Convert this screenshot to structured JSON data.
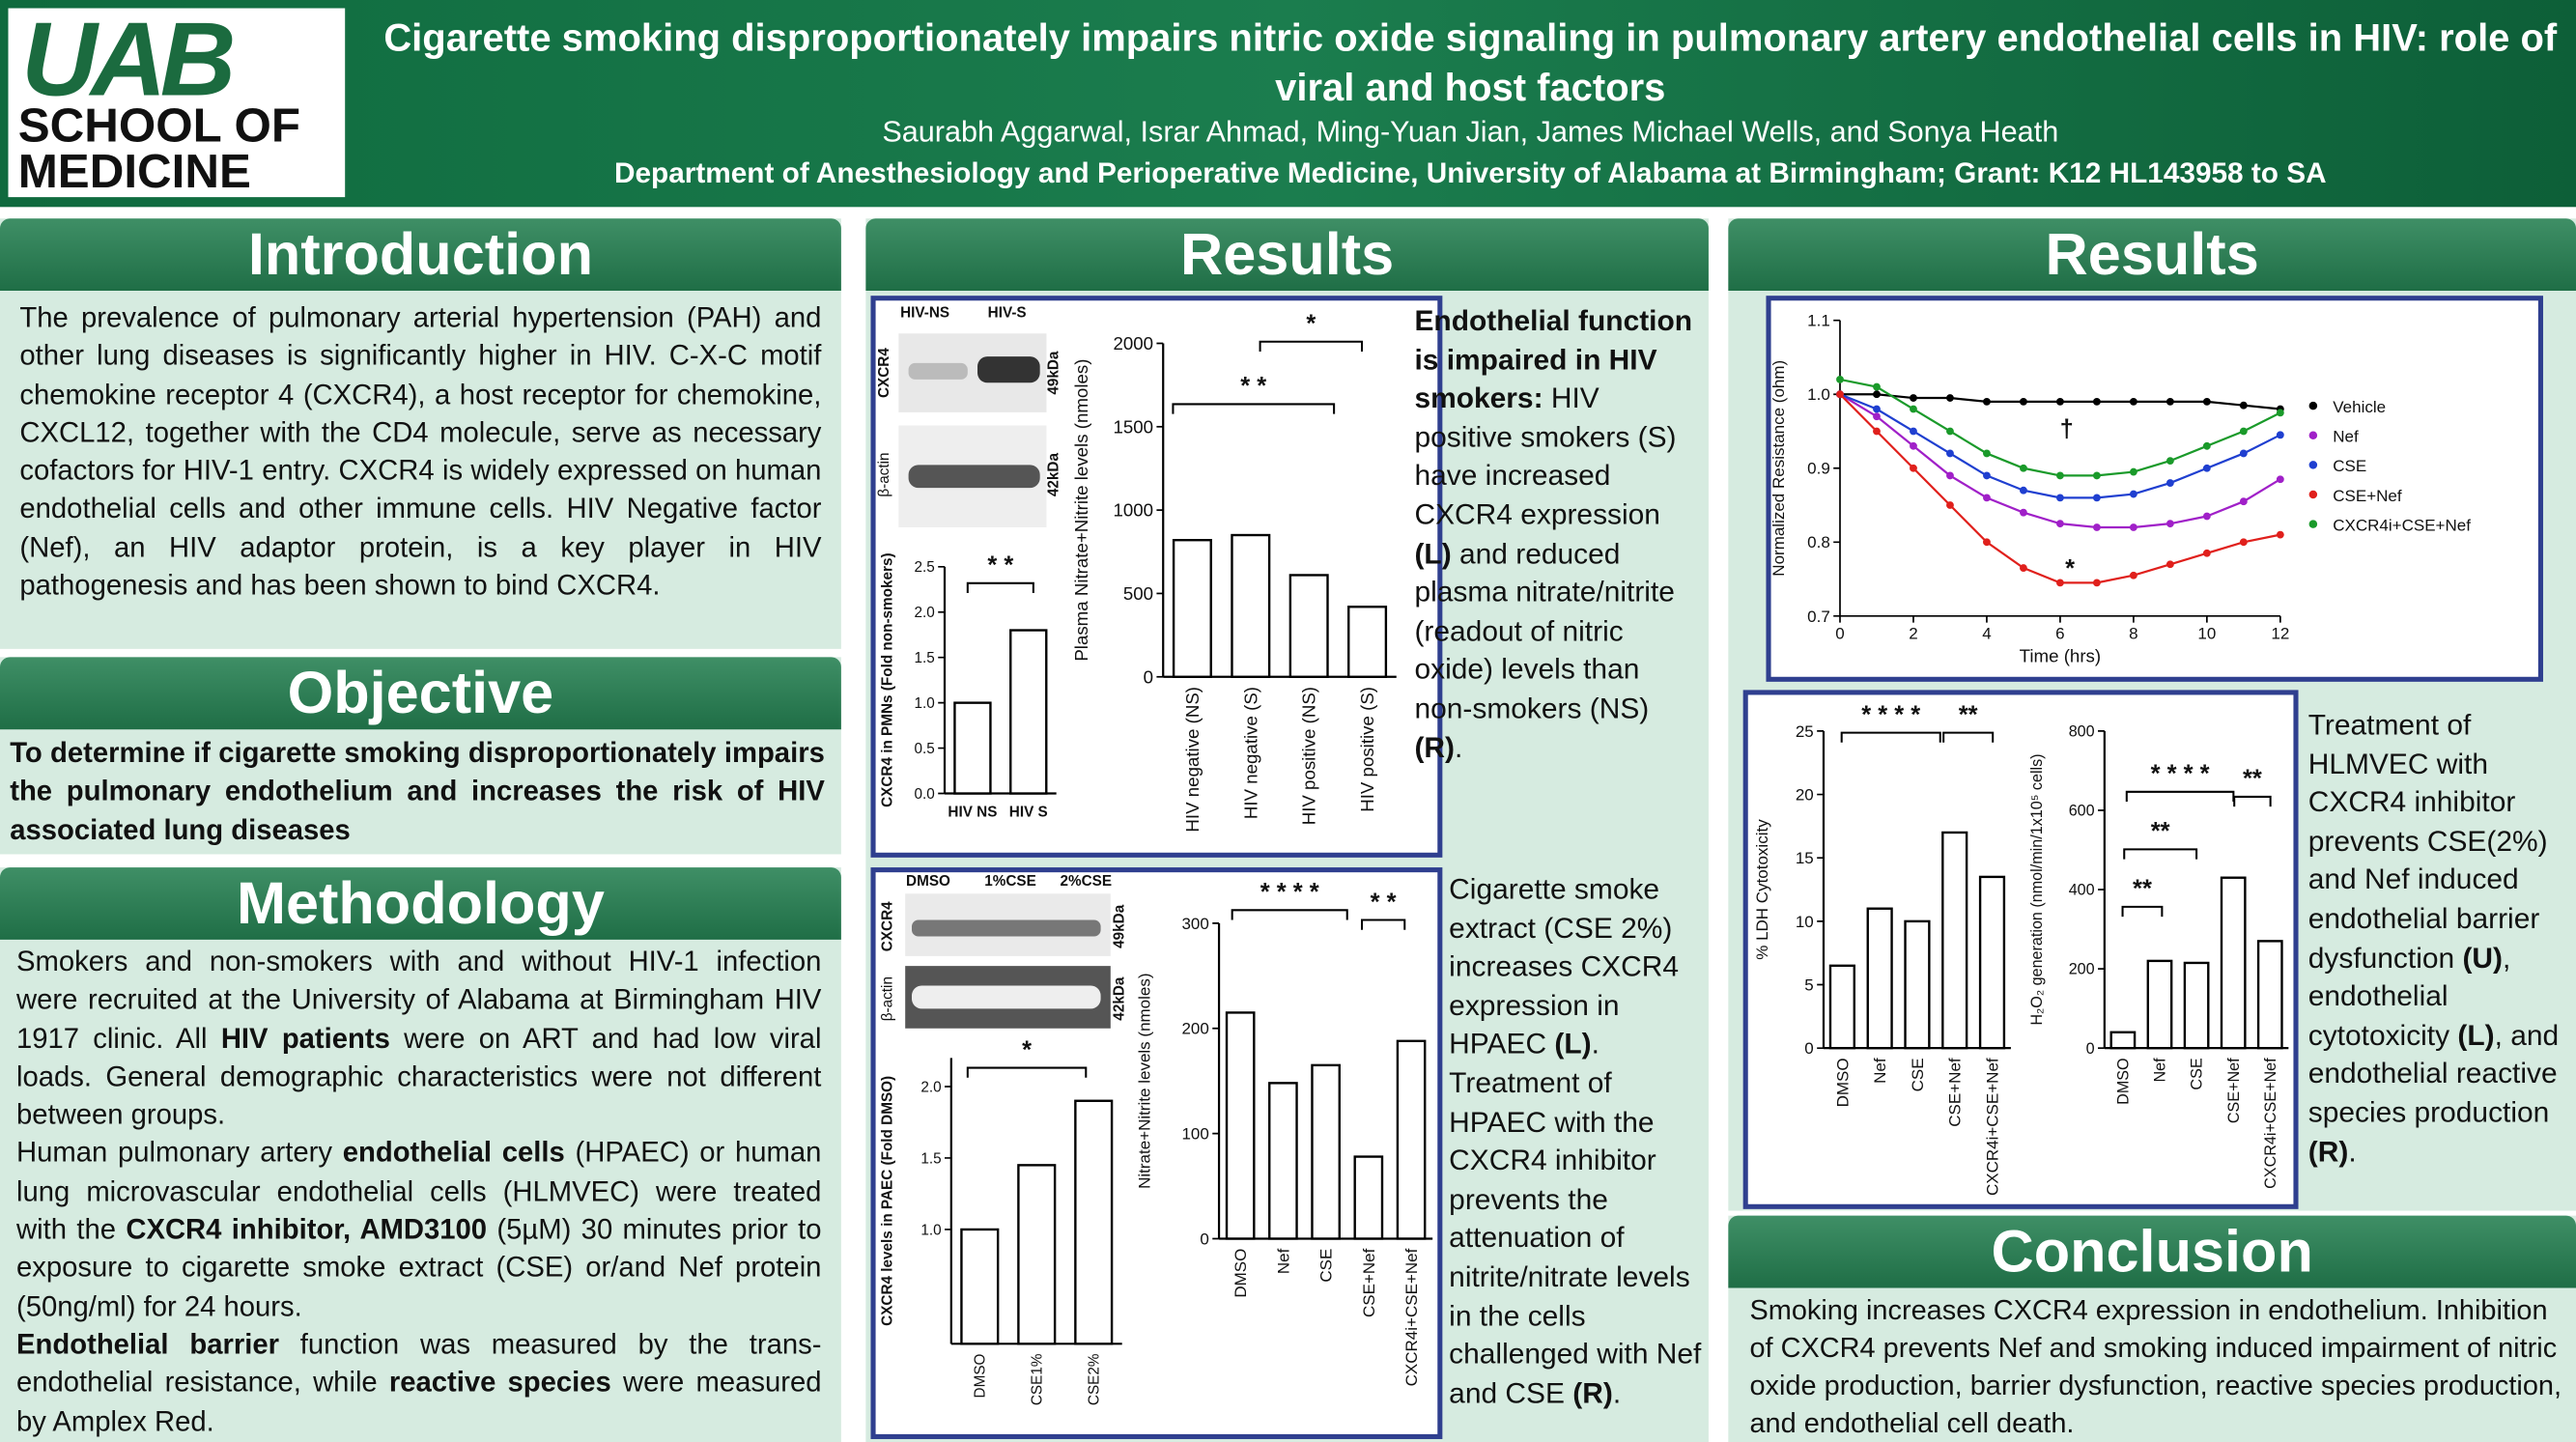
{
  "header": {
    "logo_top": "UAB",
    "logo_line1": "SCHOOL OF",
    "logo_line2": "MEDICINE",
    "title": "Cigarette smoking disproportionately impairs nitric oxide signaling in pulmonary artery endothelial cells in HIV: role of viral and host factors",
    "authors": "Saurabh Aggarwal, Israr Ahmad, Ming-Yuan Jian, James Michael Wells, and Sonya Heath",
    "affiliation": "Department of Anesthesiology and Perioperative Medicine, University of Alabama at Birmingham; Grant: K12 HL143958 to SA"
  },
  "introduction": {
    "heading": "Introduction",
    "text": "The prevalence of pulmonary arterial hypertension (PAH) and other lung diseases is significantly higher in HIV. C-X-C motif chemokine receptor 4 (CXCR4), a host receptor for chemokine, CXCL12, together with the CD4 molecule, serve as necessary cofactors for HIV-1 entry. CXCR4 is widely expressed on human endothelial cells and other immune cells. HIV Negative factor (Nef), an HIV adaptor protein, is a key player in HIV pathogenesis and has been shown to bind CXCR4."
  },
  "objective": {
    "heading": "Objective",
    "text": "To determine if cigarette smoking disproportionately impairs the pulmonary endothelium and increases the risk of HIV associated lung diseases"
  },
  "methodology": {
    "heading": "Methodology",
    "paragraphs": [
      [
        {
          "text": "Smokers and non-smokers with and without HIV-1 infection were recruited at the University of Alabama at Birmingham HIV 1917 clinic. All "
        },
        {
          "text": "HIV patients",
          "bold": true
        },
        {
          "text": " were on ART and had low viral loads. General demographic characteristics were not different between groups."
        }
      ],
      [
        {
          "text": "Human pulmonary artery "
        },
        {
          "text": "endothelial cells",
          "bold": true
        },
        {
          "text": " (HPAEC) or human lung microvascular endothelial cells (HLMVEC) were treated with the "
        },
        {
          "text": "CXCR4 inhibitor, AMD3100",
          "bold": true
        },
        {
          "text": " (5µM) 30 minutes prior to exposure to cigarette smoke extract (CSE) or/and Nef protein (50ng/ml) for 24 hours."
        }
      ],
      [
        {
          "text": "Endothelial barrier",
          "bold": true
        },
        {
          "text": " function was measured by the trans-endothelial resistance, while "
        },
        {
          "text": "reactive species",
          "bold": true
        },
        {
          "text": " were measured by Amplex Red."
        }
      ]
    ]
  },
  "results_middle": {
    "heading": "Results",
    "text1": [
      {
        "text": "Endothelial function is impaired in HIV smokers:",
        "bold": true
      },
      {
        "text": " HIV positive smokers (S) have increased CXCR4 expression "
      },
      {
        "text": "(L)",
        "bold": true
      },
      {
        "text": " and reduced plasma nitrate/nitrite (readout of nitric oxide) levels than non-smokers (NS) "
      },
      {
        "text": "(R)",
        "bold": true
      },
      {
        "text": "."
      }
    ],
    "text2": [
      {
        "text": "Cigarette smoke extract (CSE 2%) increases CXCR4 expression in HPAEC "
      },
      {
        "text": "(L)",
        "bold": true
      },
      {
        "text": ". Treatment of HPAEC with the CXCR4 inhibitor prevents the attenuation of nitrite/nitrate levels in the cells challenged with Nef and CSE  "
      },
      {
        "text": "(R)",
        "bold": true
      },
      {
        "text": "."
      }
    ],
    "blots": [
      {
        "lanes": [
          "HIV-NS",
          "HIV-S"
        ],
        "rows": [
          {
            "protein": "CXCR4",
            "size": "49kDa"
          },
          {
            "protein": "β-actin",
            "size": "42kDa"
          }
        ]
      },
      {
        "lanes": [
          "DMSO",
          "1%CSE",
          "2%CSE"
        ],
        "rows": [
          {
            "protein": "CXCR4",
            "size": "49kDa"
          },
          {
            "protein": "β-actin",
            "size": "42kDa"
          }
        ]
      }
    ]
  },
  "results_right": {
    "heading": "Results",
    "text": [
      {
        "text": "Treatment of HLMVEC with CXCR4 inhibitor prevents CSE(2%) and Nef induced endothelial barrier dysfunction "
      },
      {
        "text": "(U)",
        "bold": true
      },
      {
        "text": ", endothelial cytotoxicity "
      },
      {
        "text": "(L)",
        "bold": true
      },
      {
        "text": ", and endothelial reactive species production "
      },
      {
        "text": "(R)",
        "bold": true
      },
      {
        "text": "."
      }
    ]
  },
  "conclusion": {
    "heading": "Conclusion",
    "text": "Smoking increases CXCR4 expression in endothelium. Inhibition of CXCR4 prevents Nef and smoking induced impairment of nitric oxide production, barrier dysfunction, reactive species production, and endothelial cell death."
  },
  "chart_data": [
    {
      "type": "bar",
      "ylabel": "CXCR4 in PMNs (Fold non-smokers)",
      "categories": [
        "HIV NS",
        "HIV S"
      ],
      "values": [
        1.0,
        1.8
      ],
      "ylim": [
        0,
        2.5
      ],
      "yticks": [
        {
          "value": 0,
          "label": "0.0"
        },
        0.5,
        {
          "value": 1,
          "label": "1.0"
        },
        1.5,
        {
          "value": 2,
          "label": "2.0"
        },
        2.5
      ],
      "annotations": [
        "* *"
      ]
    },
    {
      "type": "bar",
      "ylabel": "Plasma Nitrate+Nitrite levels (nmoles)",
      "categories": [
        "HIV negative (NS)",
        "HIV negative (S)",
        "HIV positive (NS)",
        "HIV positive (S)"
      ],
      "values": [
        820,
        850,
        610,
        420
      ],
      "ylim": [
        0,
        2000
      ],
      "yticks": [
        0,
        500,
        1000,
        1500,
        2000
      ],
      "annotations": [
        "*",
        "* *"
      ]
    },
    {
      "type": "bar",
      "ylabel": "CXCR4 levels in PAEC (Fold DMSO)",
      "categories": [
        "DMSO",
        "CSE1%",
        "CSE2%"
      ],
      "values": [
        1.0,
        1.45,
        1.9
      ],
      "ylim": [
        0.2,
        2.2
      ],
      "yticks": [
        {
          "value": 1,
          "label": "1.0"
        },
        1.5,
        {
          "value": 2,
          "label": "2.0"
        }
      ],
      "annotations": [
        "*"
      ]
    },
    {
      "type": "bar",
      "ylabel": "Nitrate+Nitrite levels (nmoles)",
      "categories": [
        "DMSO",
        "Nef",
        "CSE",
        "CSE+Nef",
        "CXCR4i+CSE+Nef"
      ],
      "values": [
        215,
        148,
        165,
        78,
        188
      ],
      "ylim": [
        0,
        300
      ],
      "yticks": [
        0,
        100,
        200,
        300
      ],
      "annotations": [
        "* * * *",
        "* *"
      ]
    },
    {
      "type": "line",
      "xlabel": "Time (hrs)",
      "ylabel": "Normalized Resistance (ohm)",
      "legend": "right",
      "x": [
        0,
        1,
        2,
        3,
        4,
        5,
        6,
        7,
        8,
        9,
        10,
        11,
        12
      ],
      "xlim": [
        0,
        12
      ],
      "xticks": [
        0,
        2,
        4,
        6,
        8,
        10,
        12
      ],
      "ylim": [
        0.7,
        1.1
      ],
      "yticks": [
        0.7,
        0.8,
        0.9,
        {
          "value": 1,
          "label": "1.0"
        },
        1.1
      ],
      "series": [
        {
          "name": "Vehicle",
          "color": "#000000",
          "values": [
            1.0,
            1.0,
            0.995,
            0.995,
            0.99,
            0.99,
            0.99,
            0.99,
            0.99,
            0.99,
            0.99,
            0.985,
            0.98
          ]
        },
        {
          "name": "Nef",
          "color": "#a020c8",
          "values": [
            1.0,
            0.97,
            0.93,
            0.89,
            0.86,
            0.84,
            0.825,
            0.82,
            0.82,
            0.825,
            0.835,
            0.855,
            0.885
          ]
        },
        {
          "name": "CSE",
          "color": "#1f3fd0",
          "values": [
            1.0,
            0.98,
            0.95,
            0.92,
            0.89,
            0.87,
            0.86,
            0.86,
            0.865,
            0.88,
            0.9,
            0.92,
            0.945
          ]
        },
        {
          "name": "CSE+Nef",
          "color": "#e0201c",
          "values": [
            1.0,
            0.95,
            0.9,
            0.85,
            0.8,
            0.765,
            0.745,
            0.745,
            0.755,
            0.77,
            0.785,
            0.8,
            0.81
          ]
        },
        {
          "name": "CXCR4i+CSE+Nef",
          "color": "#1a9a2a",
          "values": [
            1.02,
            1.01,
            0.98,
            0.95,
            0.92,
            0.9,
            0.89,
            0.89,
            0.895,
            0.91,
            0.93,
            0.95,
            0.975
          ]
        }
      ],
      "annotations": [
        "†",
        "*"
      ]
    },
    {
      "type": "bar",
      "ylabel": "% LDH Cytotoxicity",
      "categories": [
        "DMSO",
        "Nef",
        "CSE",
        "CSE+Nef",
        "CXCR4i+CSE+Nef"
      ],
      "values": [
        6.5,
        11,
        10,
        17,
        13.5
      ],
      "ylim": [
        0,
        25
      ],
      "yticks": [
        0,
        5,
        10,
        15,
        20,
        25
      ],
      "annotations": [
        "* * * *",
        "**"
      ]
    },
    {
      "type": "bar",
      "ylabel": "H₂O₂ generation (nmol/min/1x10⁵ cells)",
      "categories": [
        "DMSO",
        "Nef",
        "CSE",
        "CSE+Nef",
        "CXCR4i+CSE+Nef"
      ],
      "values": [
        40,
        220,
        215,
        430,
        270
      ],
      "ylim": [
        0,
        800
      ],
      "yticks": [
        0,
        200,
        400,
        600,
        800
      ],
      "annotations": [
        "**",
        "**",
        "* * * *",
        "**"
      ]
    }
  ]
}
